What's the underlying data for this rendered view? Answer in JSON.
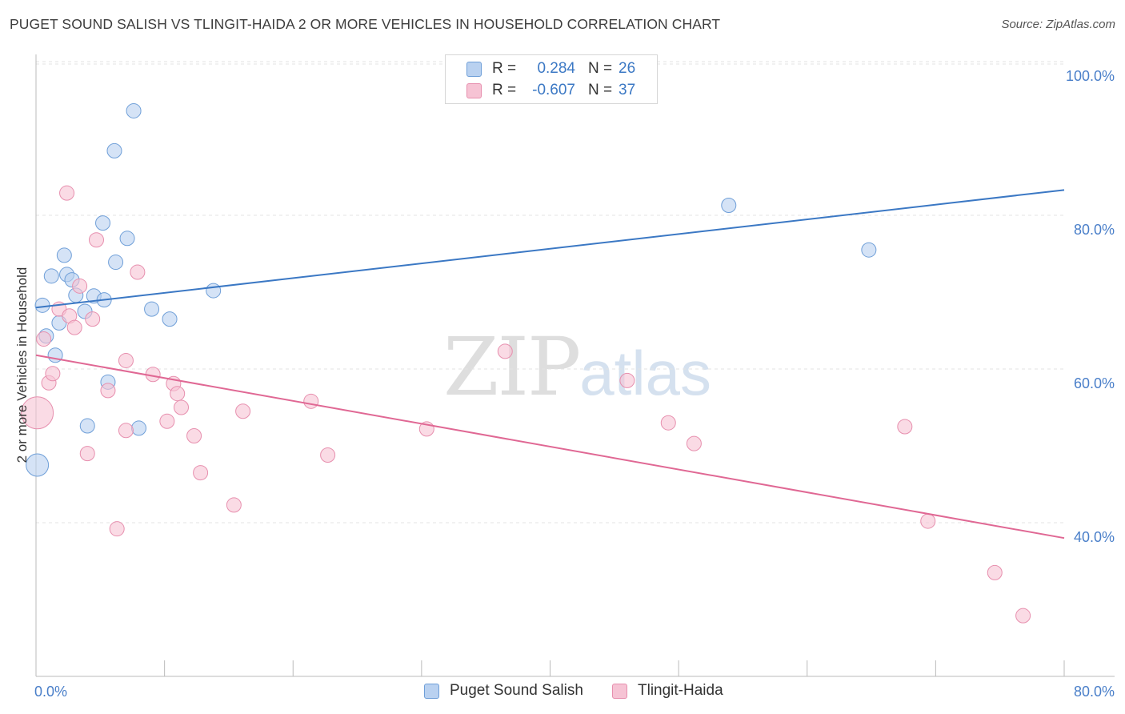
{
  "header": {
    "title": "PUGET SOUND SALISH VS TLINGIT-HAIDA 2 OR MORE VEHICLES IN HOUSEHOLD CORRELATION CHART",
    "source": "Source: ZipAtlas.com"
  },
  "watermark": {
    "zip": "ZIP",
    "atlas": "atlas"
  },
  "legend_top": {
    "rows": [
      {
        "r_label": "R =",
        "r_value": "0.284",
        "n_label": "N =",
        "n_value": "26"
      },
      {
        "r_label": "R =",
        "r_value": "-0.607",
        "n_label": "N =",
        "n_value": "37"
      }
    ]
  },
  "colors": {
    "blue": "#3b78c4",
    "blue_fill": "#b9d1f0",
    "blue_stroke": "#6f9fd8",
    "pink": "#e06894",
    "pink_fill": "#f6c3d4",
    "pink_stroke": "#e78fae",
    "axis_text_blue": "#4a7fc9",
    "grid": "#e3e3e3"
  },
  "chart_data": {
    "type": "scatter",
    "title": "PUGET SOUND SALISH VS TLINGIT-HAIDA 2 OR MORE VEHICLES IN HOUSEHOLD CORRELATION CHART",
    "xlabel": "",
    "ylabel": "2 or more Vehicles in Household",
    "xlim": [
      0,
      80
    ],
    "ylim": [
      20,
      100
    ],
    "x_tick_labels": [
      "0.0%",
      "80.0%"
    ],
    "y_tick_labels": [
      "100.0%",
      "80.0%",
      "60.0%",
      "40.0%"
    ],
    "y_ticks": [
      100,
      80,
      60,
      40
    ],
    "grid": true,
    "legend_placement": "bottom-center",
    "series": [
      {
        "name": "Puget Sound Salish",
        "color": "blue",
        "points": [
          [
            0.1,
            47.5,
            14
          ],
          [
            0.5,
            68.3,
            9
          ],
          [
            0.8,
            64.3,
            9
          ],
          [
            1.2,
            72.1,
            9
          ],
          [
            1.5,
            61.8,
            9
          ],
          [
            1.8,
            66.0,
            9
          ],
          [
            2.2,
            74.8,
            9
          ],
          [
            2.4,
            72.3,
            9
          ],
          [
            2.8,
            71.6,
            9
          ],
          [
            3.1,
            69.6,
            9
          ],
          [
            3.8,
            67.5,
            9
          ],
          [
            4.0,
            52.6,
            9
          ],
          [
            4.5,
            69.5,
            9
          ],
          [
            5.2,
            79.0,
            9
          ],
          [
            5.3,
            69.0,
            9
          ],
          [
            5.6,
            58.3,
            9
          ],
          [
            6.1,
            88.4,
            9
          ],
          [
            6.2,
            73.9,
            9
          ],
          [
            7.1,
            77.0,
            9
          ],
          [
            7.6,
            93.6,
            9
          ],
          [
            8.0,
            52.3,
            9
          ],
          [
            9.0,
            67.8,
            9
          ],
          [
            10.4,
            66.5,
            9
          ],
          [
            13.8,
            70.2,
            9
          ],
          [
            53.9,
            81.3,
            9
          ],
          [
            64.8,
            75.5,
            9
          ]
        ],
        "trend": {
          "x": [
            0,
            80
          ],
          "y": [
            68.0,
            83.3
          ]
        }
      },
      {
        "name": "Tlingit-Haida",
        "color": "pink",
        "points": [
          [
            0.1,
            54.3,
            20
          ],
          [
            0.6,
            63.9,
            9
          ],
          [
            1.0,
            58.2,
            9
          ],
          [
            1.3,
            59.4,
            9
          ],
          [
            1.8,
            67.8,
            9
          ],
          [
            2.4,
            82.9,
            9
          ],
          [
            2.6,
            66.9,
            9
          ],
          [
            3.0,
            65.4,
            9
          ],
          [
            3.4,
            70.8,
            9
          ],
          [
            4.0,
            49.0,
            9
          ],
          [
            4.4,
            66.5,
            9
          ],
          [
            4.7,
            76.8,
            9
          ],
          [
            5.6,
            57.2,
            9
          ],
          [
            6.3,
            39.2,
            9
          ],
          [
            7.0,
            61.1,
            9
          ],
          [
            7.0,
            52.0,
            9
          ],
          [
            7.9,
            72.6,
            9
          ],
          [
            9.1,
            59.3,
            9
          ],
          [
            10.2,
            53.2,
            9
          ],
          [
            10.7,
            58.1,
            9
          ],
          [
            11.0,
            56.8,
            9
          ],
          [
            11.3,
            55.0,
            9
          ],
          [
            12.3,
            51.3,
            9
          ],
          [
            12.8,
            46.5,
            9
          ],
          [
            15.4,
            42.3,
            9
          ],
          [
            16.1,
            54.5,
            9
          ],
          [
            21.4,
            55.8,
            9
          ],
          [
            22.7,
            48.8,
            9
          ],
          [
            30.4,
            52.2,
            9
          ],
          [
            36.5,
            62.3,
            9
          ],
          [
            46.0,
            58.5,
            9
          ],
          [
            49.2,
            53.0,
            9
          ],
          [
            51.2,
            50.3,
            9
          ],
          [
            67.6,
            52.5,
            9
          ],
          [
            69.4,
            40.2,
            9
          ],
          [
            74.6,
            33.5,
            9
          ],
          [
            76.8,
            27.9,
            9
          ]
        ],
        "trend": {
          "x": [
            0,
            80
          ],
          "y": [
            61.8,
            38.0
          ]
        }
      }
    ]
  },
  "legend_bottom": {
    "items": [
      {
        "label": "Puget Sound Salish",
        "color": "blue"
      },
      {
        "label": "Tlingit-Haida",
        "color": "pink"
      }
    ]
  }
}
